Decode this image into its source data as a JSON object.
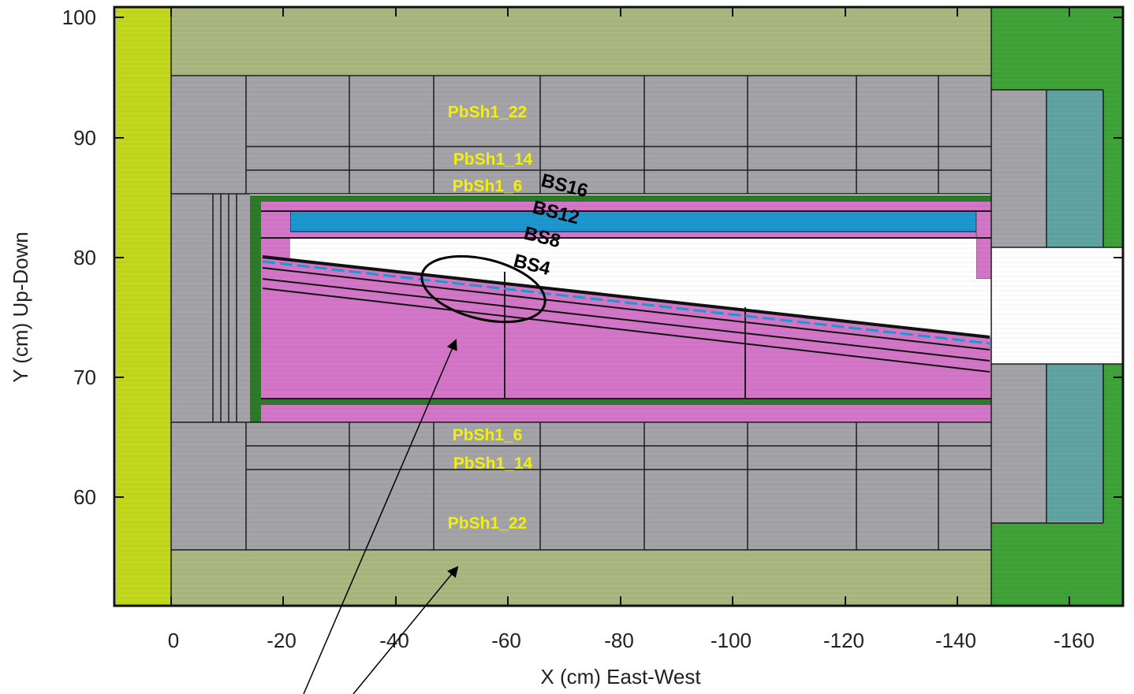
{
  "axes": {
    "xlabel": "X (cm)  East-West",
    "ylabel": "Y (cm)  Up-Down",
    "xticks": [
      "0",
      "-20",
      "-40",
      "-60",
      "-80",
      "-100",
      "-120",
      "-140",
      "-160"
    ],
    "yticks": [
      "100",
      "90",
      "80",
      "70",
      "60"
    ]
  },
  "labels": {
    "top": [
      "PbSh1_22",
      "PbSh1_14",
      "PbSh1_6"
    ],
    "bottom": [
      "PbSh1_6",
      "PbSh1_14",
      "PbSh1_22"
    ],
    "bs": [
      "BS16",
      "BS12",
      "BS8",
      "BS4"
    ]
  },
  "colors": {
    "lime": "#c2d81c",
    "olive": "#aab880",
    "gray": "#a4a4a8",
    "green": "#2d7a2a",
    "brightgreen": "#3fa33a",
    "magenta": "#d476c8",
    "blue": "#1c97cf",
    "teal": "#5fa4a2"
  }
}
